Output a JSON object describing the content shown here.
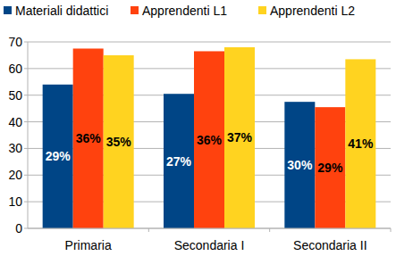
{
  "chart_data": {
    "type": "bar",
    "categories": [
      "Primaria",
      "Secondaria I",
      "Secondaria II"
    ],
    "series": [
      {
        "name": "Materiali didattici",
        "color": "#004586",
        "values": [
          54,
          50.5,
          47.5
        ],
        "percent_labels": [
          "29%",
          "27%",
          "30%"
        ]
      },
      {
        "name": "Apprendenti L1",
        "color": "#ff420e",
        "values": [
          67.5,
          66.5,
          45.5
        ],
        "percent_labels": [
          "36%",
          "36%",
          "29%"
        ]
      },
      {
        "name": "Apprendenti L2",
        "color": "#ffd320",
        "values": [
          65,
          68,
          63.5
        ],
        "percent_labels": [
          "35%",
          "37%",
          "41%"
        ]
      }
    ],
    "ylim": [
      0,
      70
    ],
    "yticks": [
      0,
      10,
      20,
      30,
      40,
      50,
      60,
      70
    ],
    "grid": true,
    "legend": "top"
  }
}
